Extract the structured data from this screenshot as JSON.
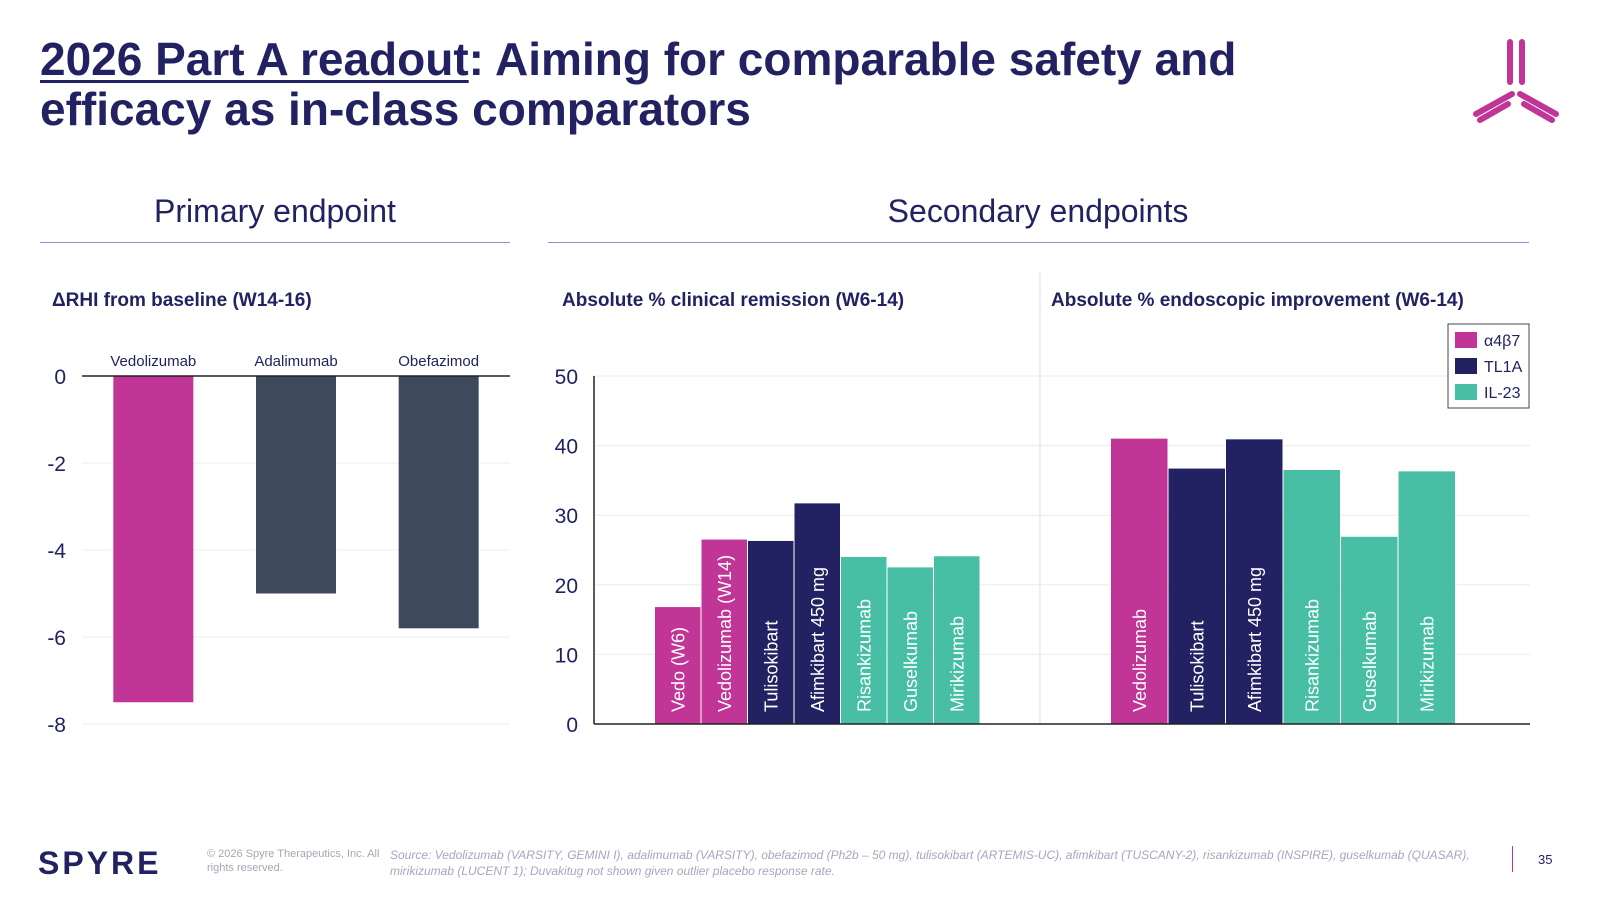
{
  "title": {
    "underlined": "2026 Part A readout",
    "rest": ": Aiming for comparable safety and efficacy as in-class comparators"
  },
  "sections": {
    "primary": "Primary endpoint",
    "secondary": "Secondary endpoints"
  },
  "colors": {
    "a4b7": "#c03595",
    "tl1a": "#222262",
    "il23": "#48bfa5",
    "comparator": "#3e4a5c",
    "title": "#222262"
  },
  "legend": [
    {
      "label": "α4β7",
      "color": "#c03595"
    },
    {
      "label": "TL1A",
      "color": "#222262"
    },
    {
      "label": "IL-23",
      "color": "#48bfa5"
    }
  ],
  "chart_data": [
    {
      "type": "bar",
      "title": "ΔRHI from baseline (W14-16)",
      "categories": [
        "Vedolizumab",
        "Adalimumab",
        "Obefazimod"
      ],
      "values": [
        -7.5,
        -5.0,
        -5.8
      ],
      "bar_colors": [
        "#c03595",
        "#3e4a5c",
        "#3e4a5c"
      ],
      "ylim": [
        -8,
        0
      ],
      "yticks": [
        0,
        -2,
        -4,
        -6,
        -8
      ],
      "grid": true
    },
    {
      "type": "bar",
      "title": "Absolute % clinical remission (W6-14)",
      "categories": [
        "Vedo (W6)",
        "Vedolizumab (W14)",
        "Tulisokibart",
        "Afimkibart 450 mg",
        "Risankizumab",
        "Guselkumab",
        "Mirikizumab"
      ],
      "values": [
        16.8,
        26.5,
        26.3,
        31.7,
        24.0,
        22.5,
        24.1
      ],
      "groups": [
        "α4β7",
        "α4β7",
        "TL1A",
        "TL1A",
        "IL-23",
        "IL-23",
        "IL-23"
      ],
      "ylim": [
        0,
        50
      ],
      "yticks": [
        0,
        10,
        20,
        30,
        40,
        50
      ],
      "grid": true
    },
    {
      "type": "bar",
      "title": "Absolute % endoscopic improvement (W6-14)",
      "categories": [
        "Vedolizumab",
        "Tulisokibart",
        "Afimkibart 450 mg",
        "Risankizumab",
        "Guselkumab",
        "Mirikizumab"
      ],
      "values": [
        41.0,
        36.7,
        40.9,
        36.5,
        26.9,
        36.3
      ],
      "groups": [
        "α4β7",
        "TL1A",
        "TL1A",
        "IL-23",
        "IL-23",
        "IL-23"
      ],
      "ylim": [
        0,
        50
      ],
      "legend_position": "top-right",
      "grid": true
    }
  ],
  "footer": {
    "brand": "SPYRE",
    "copyright": "© 2026 Spyre Therapeutics, Inc. All rights reserved.",
    "source": "Source: Vedolizumab (VARSITY, GEMINI I), adalimumab (VARSITY), obefazimod (Ph2b – 50 mg), tulisokibart (ARTEMIS-UC), afimkibart (TUSCANY-2), risankizumab (INSPIRE), guselkumab (QUASAR), mirikizumab (LUCENT 1); Duvakitug not shown given outlier placebo response rate.",
    "page": "35"
  }
}
